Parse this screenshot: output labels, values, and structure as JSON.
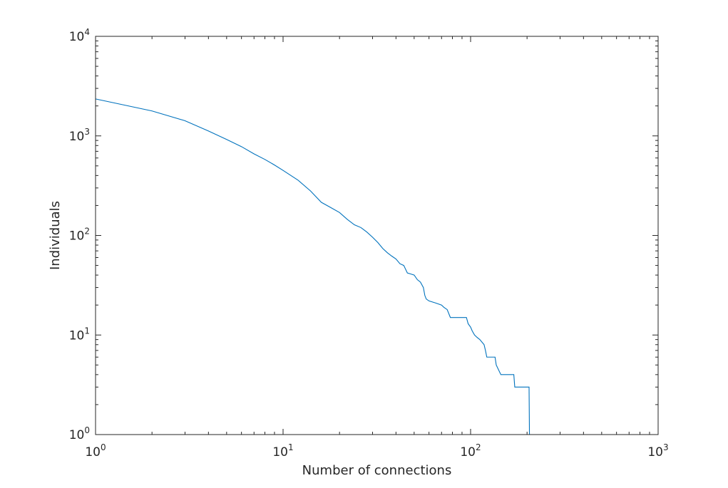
{
  "chart_data": {
    "type": "line",
    "title": "",
    "xlabel": "Number of connections",
    "ylabel": "Individuals",
    "xscale": "log",
    "yscale": "log",
    "xlim": [
      1,
      1000
    ],
    "ylim": [
      1,
      10000
    ],
    "grid": false,
    "series_color": "#0072BD",
    "x_ticks": [
      {
        "base": "10",
        "exp": "0",
        "value": 1
      },
      {
        "base": "10",
        "exp": "1",
        "value": 10
      },
      {
        "base": "10",
        "exp": "2",
        "value": 100
      },
      {
        "base": "10",
        "exp": "3",
        "value": 1000
      }
    ],
    "y_ticks": [
      {
        "base": "10",
        "exp": "0",
        "value": 1
      },
      {
        "base": "10",
        "exp": "1",
        "value": 10
      },
      {
        "base": "10",
        "exp": "2",
        "value": 100
      },
      {
        "base": "10",
        "exp": "3",
        "value": 1000
      },
      {
        "base": "10",
        "exp": "4",
        "value": 10000
      }
    ],
    "series": [
      {
        "points": [
          [
            1,
            2350
          ],
          [
            2,
            1780
          ],
          [
            3,
            1420
          ],
          [
            4,
            1120
          ],
          [
            5,
            920
          ],
          [
            6,
            780
          ],
          [
            7,
            660
          ],
          [
            8,
            580
          ],
          [
            9,
            510
          ],
          [
            10,
            450
          ],
          [
            12,
            360
          ],
          [
            14,
            280
          ],
          [
            16,
            215
          ],
          [
            18,
            190
          ],
          [
            20,
            170
          ],
          [
            22,
            145
          ],
          [
            24,
            128
          ],
          [
            26,
            120
          ],
          [
            28,
            108
          ],
          [
            30,
            96
          ],
          [
            32,
            85
          ],
          [
            34,
            74
          ],
          [
            36,
            67
          ],
          [
            38,
            62
          ],
          [
            40,
            58
          ],
          [
            42,
            52
          ],
          [
            44,
            50
          ],
          [
            46,
            42
          ],
          [
            48,
            41
          ],
          [
            50,
            40
          ],
          [
            52,
            36
          ],
          [
            54,
            34
          ],
          [
            56,
            30
          ],
          [
            57,
            25
          ],
          [
            58,
            23
          ],
          [
            60,
            22
          ],
          [
            65,
            21
          ],
          [
            70,
            20
          ],
          [
            72,
            19
          ],
          [
            75,
            18
          ],
          [
            78,
            15
          ],
          [
            95,
            15
          ],
          [
            97,
            13
          ],
          [
            100,
            12
          ],
          [
            102,
            11
          ],
          [
            105,
            10
          ],
          [
            108,
            9.5
          ],
          [
            112,
            9
          ],
          [
            118,
            8
          ],
          [
            120,
            7
          ],
          [
            122,
            6
          ],
          [
            135,
            6
          ],
          [
            137,
            5
          ],
          [
            145,
            4
          ],
          [
            155,
            4
          ],
          [
            170,
            4
          ],
          [
            172,
            3
          ],
          [
            205,
            3
          ],
          [
            206,
            1
          ]
        ]
      }
    ]
  }
}
